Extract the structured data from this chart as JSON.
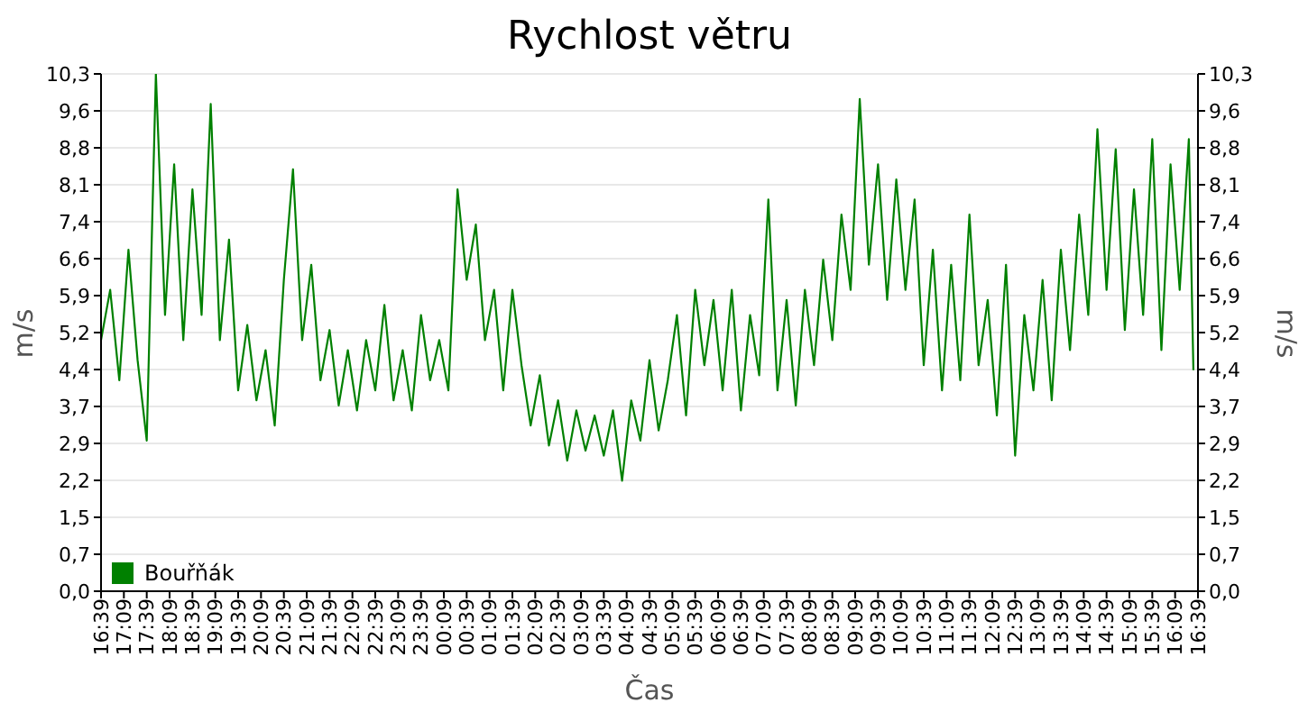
{
  "chart_data": {
    "type": "line",
    "title": "Rychlost větru",
    "xlabel": "Čas",
    "ylabel": "m/s",
    "y2label": "m/s",
    "xlim": [
      "--01-01T16:39",
      "--01-02T16:39"
    ],
    "xticks": [
      {
        "value": "--01-01T16:39",
        "label": "16:39"
      },
      {
        "value": "--01-01T17:09",
        "label": "17:09"
      },
      {
        "value": "--01-01T17:39",
        "label": "17:39"
      },
      {
        "value": "--01-01T18:09",
        "label": "18:09"
      },
      {
        "value": "--01-01T18:39",
        "label": "18:39"
      },
      {
        "value": "--01-01T19:09",
        "label": "19:09"
      },
      {
        "value": "--01-01T19:39",
        "label": "19:39"
      },
      {
        "value": "--01-01T20:09",
        "label": "20:09"
      },
      {
        "value": "--01-01T20:39",
        "label": "20:39"
      },
      {
        "value": "--01-01T21:09",
        "label": "21:09"
      },
      {
        "value": "--01-01T21:39",
        "label": "21:39"
      },
      {
        "value": "--01-01T22:09",
        "label": "22:09"
      },
      {
        "value": "--01-01T22:39",
        "label": "22:39"
      },
      {
        "value": "--01-01T23:09",
        "label": "23:09"
      },
      {
        "value": "--01-01T23:39",
        "label": "23:39"
      },
      {
        "value": "--01-02T00:09",
        "label": "00:09"
      },
      {
        "value": "--01-02T00:39",
        "label": "00:39"
      },
      {
        "value": "--01-02T01:09",
        "label": "01:09"
      },
      {
        "value": "--01-02T01:39",
        "label": "01:39"
      },
      {
        "value": "--01-02T02:09",
        "label": "02:09"
      },
      {
        "value": "--01-02T02:39",
        "label": "02:39"
      },
      {
        "value": "--01-02T03:09",
        "label": "03:09"
      },
      {
        "value": "--01-02T03:39",
        "label": "03:39"
      },
      {
        "value": "--01-02T04:09",
        "label": "04:09"
      },
      {
        "value": "--01-02T04:39",
        "label": "04:39"
      },
      {
        "value": "--01-02T05:09",
        "label": "05:09"
      },
      {
        "value": "--01-02T05:39",
        "label": "05:39"
      },
      {
        "value": "--01-02T06:09",
        "label": "06:09"
      },
      {
        "value": "--01-02T06:39",
        "label": "06:39"
      },
      {
        "value": "--01-02T07:09",
        "label": "07:09"
      },
      {
        "value": "--01-02T07:39",
        "label": "07:39"
      },
      {
        "value": "--01-02T08:09",
        "label": "08:09"
      },
      {
        "value": "--01-02T08:39",
        "label": "08:39"
      },
      {
        "value": "--01-02T09:09",
        "label": "09:09"
      },
      {
        "value": "--01-02T09:39",
        "label": "09:39"
      },
      {
        "value": "--01-02T10:09",
        "label": "10:09"
      },
      {
        "value": "--01-02T10:39",
        "label": "10:39"
      },
      {
        "value": "--01-02T11:09",
        "label": "11:09"
      },
      {
        "value": "--01-02T11:39",
        "label": "11:39"
      },
      {
        "value": "--01-02T12:09",
        "label": "12:09"
      },
      {
        "value": "--01-02T12:39",
        "label": "12:39"
      },
      {
        "value": "--01-02T13:09",
        "label": "13:09"
      },
      {
        "value": "--01-02T13:39",
        "label": "13:39"
      },
      {
        "value": "--01-02T14:09",
        "label": "14:09"
      },
      {
        "value": "--01-02T14:39",
        "label": "14:39"
      },
      {
        "value": "--01-02T15:09",
        "label": "15:09"
      },
      {
        "value": "--01-02T15:39",
        "label": "15:39"
      },
      {
        "value": "--01-02T16:09",
        "label": "16:09"
      },
      {
        "value": "--01-02T16:39",
        "label": "16:39"
      }
    ],
    "ylim": [
      0,
      10.3
    ],
    "yticks": [
      {
        "value": 0,
        "label": "0,0"
      },
      {
        "value": 0.736,
        "label": "0,7"
      },
      {
        "value": 1.471,
        "label": "1,5"
      },
      {
        "value": 2.207,
        "label": "2,2"
      },
      {
        "value": 2.943,
        "label": "2,9"
      },
      {
        "value": 3.679,
        "label": "3,7"
      },
      {
        "value": 4.414,
        "label": "4,4"
      },
      {
        "value": 5.15,
        "label": "5,2"
      },
      {
        "value": 5.886,
        "label": "5,9"
      },
      {
        "value": 6.621,
        "label": "6,6"
      },
      {
        "value": 7.357,
        "label": "7,4"
      },
      {
        "value": 8.093,
        "label": "8,1"
      },
      {
        "value": 8.829,
        "label": "8,8"
      },
      {
        "value": 9.564,
        "label": "9,6"
      },
      {
        "value": 10.3,
        "label": "10,3"
      }
    ],
    "y2lim": [
      0,
      10.3
    ],
    "y2ticks": [
      {
        "value": 0,
        "label": "0,0"
      },
      {
        "value": 0.736,
        "label": "0,7"
      },
      {
        "value": 1.471,
        "label": "1,5"
      },
      {
        "value": 2.207,
        "label": "2,2"
      },
      {
        "value": 2.943,
        "label": "2,9"
      },
      {
        "value": 3.679,
        "label": "3,7"
      },
      {
        "value": 4.414,
        "label": "4,4"
      },
      {
        "value": 5.15,
        "label": "5,2"
      },
      {
        "value": 5.886,
        "label": "5,9"
      },
      {
        "value": 6.621,
        "label": "6,6"
      },
      {
        "value": 7.357,
        "label": "7,4"
      },
      {
        "value": 8.093,
        "label": "8,1"
      },
      {
        "value": 8.829,
        "label": "8,8"
      },
      {
        "value": 9.564,
        "label": "9,6"
      },
      {
        "value": 10.3,
        "label": "10,3"
      }
    ],
    "grid": "y",
    "legend": "bottom left",
    "marker": "none",
    "line_style": "solid",
    "x": [
      "--01-01T16:39",
      "--01-01T16:51",
      "--01-01T17:03",
      "--01-01T17:15",
      "--01-01T17:27",
      "--01-01T17:39",
      "--01-01T17:51",
      "--01-01T18:03",
      "--01-01T18:15",
      "--01-01T18:27",
      "--01-01T18:39",
      "--01-01T18:51",
      "--01-01T19:03",
      "--01-01T19:15",
      "--01-01T19:27",
      "--01-01T19:39",
      "--01-01T19:51",
      "--01-01T20:03",
      "--01-01T20:15",
      "--01-01T20:27",
      "--01-01T20:39",
      "--01-01T20:51",
      "--01-01T21:03",
      "--01-01T21:15",
      "--01-01T21:27",
      "--01-01T21:39",
      "--01-01T21:51",
      "--01-01T22:03",
      "--01-01T22:15",
      "--01-01T22:27",
      "--01-01T22:39",
      "--01-01T22:51",
      "--01-01T23:03",
      "--01-01T23:15",
      "--01-01T23:27",
      "--01-01T23:39",
      "--01-01T23:51",
      "--01-02T00:03",
      "--01-02T00:15",
      "--01-02T00:27",
      "--01-02T00:39",
      "--01-02T00:51",
      "--01-02T01:03",
      "--01-02T01:15",
      "--01-02T01:27",
      "--01-02T01:39",
      "--01-02T01:51",
      "--01-02T02:03",
      "--01-02T02:15",
      "--01-02T02:27",
      "--01-02T02:39",
      "--01-02T02:51",
      "--01-02T03:03",
      "--01-02T03:15",
      "--01-02T03:27",
      "--01-02T03:39",
      "--01-02T03:51",
      "--01-02T04:03",
      "--01-02T04:15",
      "--01-02T04:27",
      "--01-02T04:39",
      "--01-02T04:51",
      "--01-02T05:03",
      "--01-02T05:15",
      "--01-02T05:27",
      "--01-02T05:39",
      "--01-02T05:51",
      "--01-02T06:03",
      "--01-02T06:15",
      "--01-02T06:27",
      "--01-02T06:39",
      "--01-02T06:51",
      "--01-02T07:03",
      "--01-02T07:15",
      "--01-02T07:27",
      "--01-02T07:39",
      "--01-02T07:51",
      "--01-02T08:03",
      "--01-02T08:15",
      "--01-02T08:27",
      "--01-02T08:39",
      "--01-02T08:51",
      "--01-02T09:03",
      "--01-02T09:15",
      "--01-02T09:27",
      "--01-02T09:39",
      "--01-02T09:51",
      "--01-02T10:03",
      "--01-02T10:15",
      "--01-02T10:27",
      "--01-02T10:39",
      "--01-02T10:51",
      "--01-02T11:03",
      "--01-02T11:15",
      "--01-02T11:27",
      "--01-02T11:39",
      "--01-02T11:51",
      "--01-02T12:03",
      "--01-02T12:15",
      "--01-02T12:27",
      "--01-02T12:39",
      "--01-02T12:51",
      "--01-02T13:03",
      "--01-02T13:15",
      "--01-02T13:27",
      "--01-02T13:39",
      "--01-02T13:51",
      "--01-02T14:03",
      "--01-02T14:15",
      "--01-02T14:27",
      "--01-02T14:39",
      "--01-02T14:51",
      "--01-02T15:03",
      "--01-02T15:15",
      "--01-02T15:27",
      "--01-02T15:39",
      "--01-02T15:51",
      "--01-02T16:03",
      "--01-02T16:15",
      "--01-02T16:27",
      "--01-02T16:33"
    ],
    "series": [
      {
        "name": "Bouřňák",
        "color": "#008000",
        "values": [
          5.0,
          6.0,
          4.2,
          6.8,
          4.6,
          3.0,
          10.3,
          5.5,
          8.5,
          5.0,
          8.0,
          5.5,
          9.7,
          5.0,
          7.0,
          4.0,
          5.3,
          3.8,
          4.8,
          3.3,
          6.2,
          8.4,
          5.0,
          6.5,
          4.2,
          5.2,
          3.7,
          4.8,
          3.6,
          5.0,
          4.0,
          5.7,
          3.8,
          4.8,
          3.6,
          5.5,
          4.2,
          5.0,
          4.0,
          8.0,
          6.2,
          7.3,
          5.0,
          6.0,
          4.0,
          6.0,
          4.5,
          3.3,
          4.3,
          2.9,
          3.8,
          2.6,
          3.6,
          2.8,
          3.5,
          2.7,
          3.6,
          2.2,
          3.8,
          3.0,
          4.6,
          3.2,
          4.2,
          5.5,
          3.5,
          6.0,
          4.5,
          5.8,
          4.0,
          6.0,
          3.6,
          5.5,
          4.3,
          7.8,
          4.0,
          5.8,
          3.7,
          6.0,
          4.5,
          6.6,
          5.0,
          7.5,
          6.0,
          9.8,
          6.5,
          8.5,
          5.8,
          8.2,
          6.0,
          7.8,
          4.5,
          6.8,
          4.0,
          6.5,
          4.2,
          7.5,
          4.5,
          5.8,
          3.5,
          6.5,
          2.7,
          5.5,
          4.0,
          6.2,
          3.8,
          6.8,
          4.8,
          7.5,
          5.5,
          9.2,
          6.0,
          8.8,
          5.2,
          8.0,
          5.5,
          9.0,
          4.8,
          8.5,
          6.0,
          9.0,
          4.4
        ]
      }
    ]
  }
}
